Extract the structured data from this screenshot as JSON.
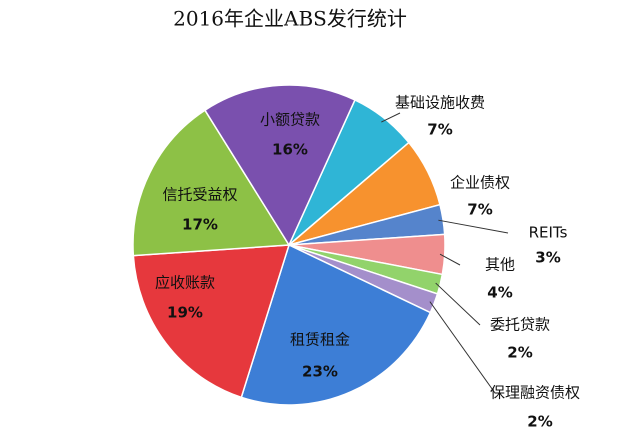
{
  "chart_data": {
    "type": "pie",
    "title": "2016年企业ABS发行统计",
    "categories": [
      "基础设施收费",
      "企业债权",
      "REITs",
      "其他",
      "委托贷款",
      "保理融资债权",
      "租赁租金",
      "应收账款",
      "信托受益权",
      "小额贷款"
    ],
    "values": [
      7,
      7,
      3,
      4,
      2,
      2,
      23,
      19,
      17,
      16
    ],
    "value_labels": [
      "7%",
      "7%",
      "3%",
      "4%",
      "2%",
      "2%",
      "23%",
      "19%",
      "17%",
      "16%"
    ],
    "colors": [
      "#2fb5d6",
      "#f7922e",
      "#5584cc",
      "#ef8e8e",
      "#92d36b",
      "#a48fcb",
      "#3d7ed6",
      "#e6383d",
      "#8dc146",
      "#7a50ae"
    ]
  }
}
